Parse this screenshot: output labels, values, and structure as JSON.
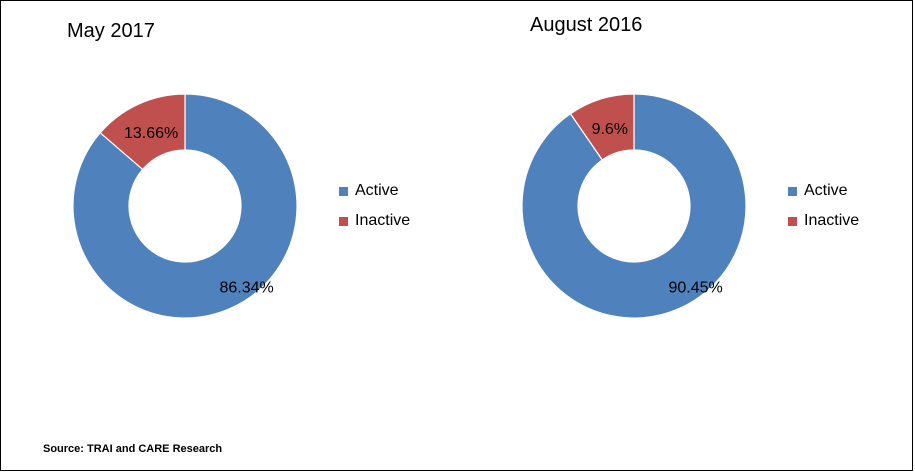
{
  "source_note": "Source: TRAI and CARE Research",
  "colors": {
    "active": "#4F81BD",
    "inactive": "#C0504D",
    "border": "#000000"
  },
  "chart_data": [
    {
      "type": "pie",
      "title": "May 2017",
      "categories": [
        "Active",
        "Inactive"
      ],
      "values": [
        86.34,
        13.66
      ],
      "data_labels": [
        "86.34%",
        "13.66%"
      ],
      "donut": true,
      "legend_position": "right"
    },
    {
      "type": "pie",
      "title": "August 2016",
      "categories": [
        "Active",
        "Inactive"
      ],
      "values": [
        90.45,
        9.6
      ],
      "data_labels": [
        "90.45%",
        "9.6%"
      ],
      "donut": true,
      "legend_position": "right"
    }
  ]
}
